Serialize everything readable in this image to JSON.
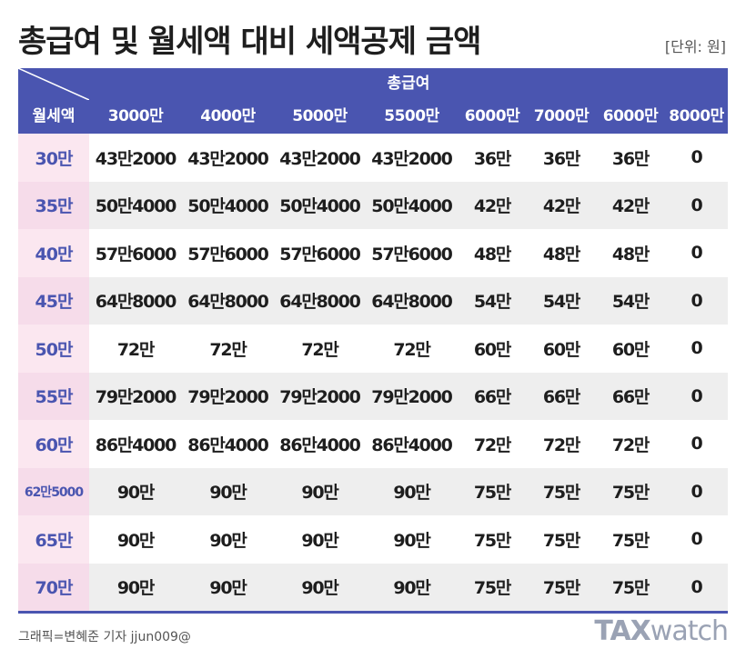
{
  "title": "총급여 및 월세액 대비 세액공제 금액",
  "unit": "[단위: 원]",
  "table": {
    "group_header": "총급여",
    "corner_label": "월세액",
    "columns": [
      "3000만",
      "4000만",
      "5000만",
      "5500만",
      "6000만",
      "7000만",
      "6000만",
      "8000만"
    ],
    "rows": [
      {
        "label": "30만",
        "values": [
          "43만2000",
          "43만2000",
          "43만2000",
          "43만2000",
          "36만",
          "36만",
          "36만",
          "0"
        ]
      },
      {
        "label": "35만",
        "values": [
          "50만4000",
          "50만4000",
          "50만4000",
          "50만4000",
          "42만",
          "42만",
          "42만",
          "0"
        ]
      },
      {
        "label": "40만",
        "values": [
          "57만6000",
          "57만6000",
          "57만6000",
          "57만6000",
          "48만",
          "48만",
          "48만",
          "0"
        ]
      },
      {
        "label": "45만",
        "values": [
          "64만8000",
          "64만8000",
          "64만8000",
          "64만8000",
          "54만",
          "54만",
          "54만",
          "0"
        ]
      },
      {
        "label": "50만",
        "values": [
          "72만",
          "72만",
          "72만",
          "72만",
          "60만",
          "60만",
          "60만",
          "0"
        ]
      },
      {
        "label": "55만",
        "values": [
          "79만2000",
          "79만2000",
          "79만2000",
          "79만2000",
          "66만",
          "66만",
          "66만",
          "0"
        ]
      },
      {
        "label": "60만",
        "values": [
          "86만4000",
          "86만4000",
          "86만4000",
          "86만4000",
          "72만",
          "72만",
          "72만",
          "0"
        ]
      },
      {
        "label": "62만5000",
        "values": [
          "90만",
          "90만",
          "90만",
          "90만",
          "75만",
          "75만",
          "75만",
          "0"
        ]
      },
      {
        "label": "65만",
        "values": [
          "90만",
          "90만",
          "90만",
          "90만",
          "75만",
          "75만",
          "75만",
          "0"
        ]
      },
      {
        "label": "70만",
        "values": [
          "90만",
          "90만",
          "90만",
          "90만",
          "75만",
          "75만",
          "75만",
          "0"
        ]
      }
    ]
  },
  "credit": "그래픽=변혜준 기자 jjun009@",
  "logo": {
    "part1": "TAX",
    "part2": "watch"
  },
  "colors": {
    "header_bg": "#4a55b0",
    "row_label_bg": "#fbe7f0",
    "row_label_text": "#4a55b0",
    "stripe": "#eeeeee"
  }
}
